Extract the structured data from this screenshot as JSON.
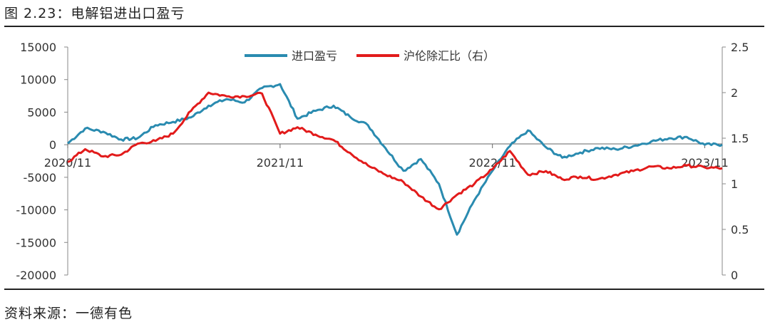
{
  "figure": {
    "title": "图 2.23：电解铝进出口盈亏",
    "source": "资料来源：一德有色"
  },
  "chart_data": {
    "type": "line",
    "x_ticks": [
      "2020/11",
      "2021/11",
      "2022/11",
      "2023/11"
    ],
    "y_left": {
      "min": -20000,
      "max": 15000,
      "ticks": [
        15000,
        10000,
        5000,
        0,
        -5000,
        -10000,
        -15000,
        -20000
      ]
    },
    "y_right": {
      "min": 0,
      "max": 2.5,
      "ticks": [
        "2.5",
        "2",
        "1.5",
        "1",
        "0.5",
        "0"
      ]
    },
    "legend_position": "top-center",
    "series": [
      {
        "name": "进口盈亏",
        "axis": "left",
        "color": "#2a8bb0",
        "points": [
          [
            "2020-11",
            200
          ],
          [
            "2020-12",
            2500
          ],
          [
            "2021-01",
            2000
          ],
          [
            "2021-02",
            800
          ],
          [
            "2021-03",
            1000
          ],
          [
            "2021-04",
            3000
          ],
          [
            "2021-05",
            3500
          ],
          [
            "2021-06",
            4200
          ],
          [
            "2021-07",
            6000
          ],
          [
            "2021-08",
            7000
          ],
          [
            "2021-09",
            6500
          ],
          [
            "2021-10",
            8700
          ],
          [
            "2021-11",
            9300
          ],
          [
            "2021-12",
            4000
          ],
          [
            "2022-01",
            5200
          ],
          [
            "2022-02",
            6000
          ],
          [
            "2022-03",
            4300
          ],
          [
            "2022-04",
            3000
          ],
          [
            "2022-05",
            -500
          ],
          [
            "2022-06",
            -4000
          ],
          [
            "2022-07",
            -2200
          ],
          [
            "2022-08",
            -6000
          ],
          [
            "2022-09",
            -13800
          ],
          [
            "2022-10",
            -8500
          ],
          [
            "2022-11",
            -4000
          ],
          [
            "2022-12",
            -200
          ],
          [
            "2023-01",
            2200
          ],
          [
            "2023-02",
            -400
          ],
          [
            "2023-03",
            -2000
          ],
          [
            "2023-04",
            -1200
          ],
          [
            "2023-05",
            -500
          ],
          [
            "2023-06",
            -700
          ],
          [
            "2023-07",
            -200
          ],
          [
            "2023-08",
            500
          ],
          [
            "2023-09",
            1000
          ],
          [
            "2023-10",
            1200
          ],
          [
            "2023-11",
            0
          ],
          [
            "2023-12",
            0
          ]
        ]
      },
      {
        "name": "沪伦除汇比（右）",
        "axis": "right",
        "color": "#e21b1b",
        "points": [
          [
            "2020-11",
            1.24
          ],
          [
            "2020-12",
            1.38
          ],
          [
            "2021-01",
            1.3
          ],
          [
            "2021-02",
            1.32
          ],
          [
            "2021-03",
            1.44
          ],
          [
            "2021-04",
            1.47
          ],
          [
            "2021-05",
            1.55
          ],
          [
            "2021-06",
            1.8
          ],
          [
            "2021-07",
            2.0
          ],
          [
            "2021-08",
            1.96
          ],
          [
            "2021-09",
            1.96
          ],
          [
            "2021-10",
            1.99
          ],
          [
            "2021-11",
            1.55
          ],
          [
            "2021-12",
            1.62
          ],
          [
            "2022-01",
            1.54
          ],
          [
            "2022-02",
            1.48
          ],
          [
            "2022-03",
            1.34
          ],
          [
            "2022-04",
            1.2
          ],
          [
            "2022-05",
            1.1
          ],
          [
            "2022-06",
            1.02
          ],
          [
            "2022-07",
            0.86
          ],
          [
            "2022-08",
            0.72
          ],
          [
            "2022-09",
            0.88
          ],
          [
            "2022-10",
            1.0
          ],
          [
            "2022-11",
            1.16
          ],
          [
            "2022-12",
            1.36
          ],
          [
            "2023-01",
            1.1
          ],
          [
            "2023-02",
            1.14
          ],
          [
            "2023-03",
            1.05
          ],
          [
            "2023-04",
            1.08
          ],
          [
            "2023-05",
            1.05
          ],
          [
            "2023-06",
            1.1
          ],
          [
            "2023-07",
            1.14
          ],
          [
            "2023-08",
            1.19
          ],
          [
            "2023-09",
            1.17
          ],
          [
            "2023-10",
            1.2
          ],
          [
            "2023-11",
            1.18
          ],
          [
            "2023-12",
            1.17
          ]
        ]
      }
    ]
  }
}
